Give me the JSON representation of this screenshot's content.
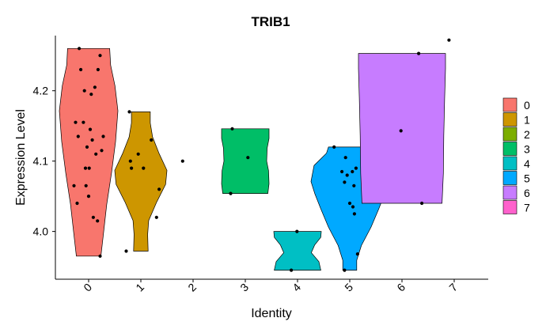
{
  "chart_data": {
    "type": "violin",
    "title": "TRIB1",
    "xlabel": "Identity",
    "ylabel": "Expression Level",
    "categories": [
      "0",
      "1",
      "2",
      "3",
      "4",
      "5",
      "6",
      "7"
    ],
    "yticks": [
      "4.0",
      "4.1",
      "4.2"
    ],
    "ylim": [
      3.94,
      4.275
    ],
    "legend_position": "right",
    "grid": false,
    "series": [
      {
        "name": "0",
        "color": "#F8766D",
        "range": [
          3.965,
          4.26
        ],
        "points": [
          [
            -0.28,
            4.065
          ],
          [
            -0.2,
            4.135
          ],
          [
            -0.25,
            4.155
          ],
          [
            -0.15,
            4.23
          ],
          [
            -0.22,
            4.04
          ],
          [
            -0.18,
            4.26
          ],
          [
            -0.08,
            4.2
          ],
          [
            -0.1,
            4.155
          ],
          [
            0.05,
            4.195
          ],
          [
            0.12,
            4.205
          ],
          [
            0.03,
            4.145
          ],
          [
            -0.03,
            4.12
          ],
          [
            0.07,
            4.13
          ],
          [
            0.14,
            4.11
          ],
          [
            0.18,
            4.23
          ],
          [
            0.22,
            4.25
          ],
          [
            0.25,
            4.115
          ],
          [
            0.28,
            4.135
          ],
          [
            -0.06,
            4.09
          ],
          [
            0.01,
            4.09
          ],
          [
            0.09,
            4.02
          ],
          [
            -0.05,
            4.065
          ],
          [
            0.0,
            4.05
          ],
          [
            0.17,
            4.015
          ],
          [
            0.22,
            3.965
          ]
        ]
      },
      {
        "name": "1",
        "color": "#CD9600",
        "range": [
          3.972,
          4.17
        ],
        "points": [
          [
            -0.28,
            3.972
          ],
          [
            -0.22,
            4.17
          ],
          [
            -0.2,
            4.1
          ],
          [
            -0.18,
            4.09
          ],
          [
            -0.05,
            4.11
          ],
          [
            0.05,
            4.09
          ],
          [
            0.2,
            4.13
          ],
          [
            0.35,
            4.06
          ],
          [
            0.3,
            4.02
          ]
        ]
      },
      {
        "name": "2",
        "color": "#7CAE00",
        "range": null,
        "points": [
          [
            -0.2,
            4.1
          ]
        ]
      },
      {
        "name": "3",
        "color": "#00BE67",
        "range": [
          4.054,
          4.146
        ],
        "points": [
          [
            -0.28,
            4.054
          ],
          [
            -0.25,
            4.146
          ],
          [
            0.05,
            4.105
          ]
        ]
      },
      {
        "name": "4",
        "color": "#00BFC4",
        "range": [
          3.945,
          4.0
        ],
        "points": [
          [
            -0.12,
            3.945
          ],
          [
            -0.01,
            4.0
          ]
        ]
      },
      {
        "name": "5",
        "color": "#00A9FF",
        "range": [
          3.945,
          4.12
        ],
        "points": [
          [
            -0.3,
            4.12
          ],
          [
            -0.08,
            4.105
          ],
          [
            -0.15,
            4.085
          ],
          [
            -0.05,
            4.08
          ],
          [
            0.05,
            4.085
          ],
          [
            0.12,
            4.09
          ],
          [
            -0.1,
            4.07
          ],
          [
            0.08,
            4.065
          ],
          [
            0.0,
            4.04
          ],
          [
            0.06,
            4.035
          ],
          [
            0.09,
            4.025
          ],
          [
            0.15,
            3.968
          ],
          [
            -0.1,
            3.945
          ]
        ]
      },
      {
        "name": "6",
        "color": "#C77CFF",
        "range": [
          4.04,
          4.253
        ],
        "points": [
          [
            0.32,
            4.253
          ],
          [
            -0.02,
            4.143
          ],
          [
            0.38,
            4.04
          ]
        ]
      },
      {
        "name": "7",
        "color": "#FF61CC",
        "range": null,
        "points": [
          [
            -0.1,
            4.272
          ]
        ]
      }
    ]
  }
}
